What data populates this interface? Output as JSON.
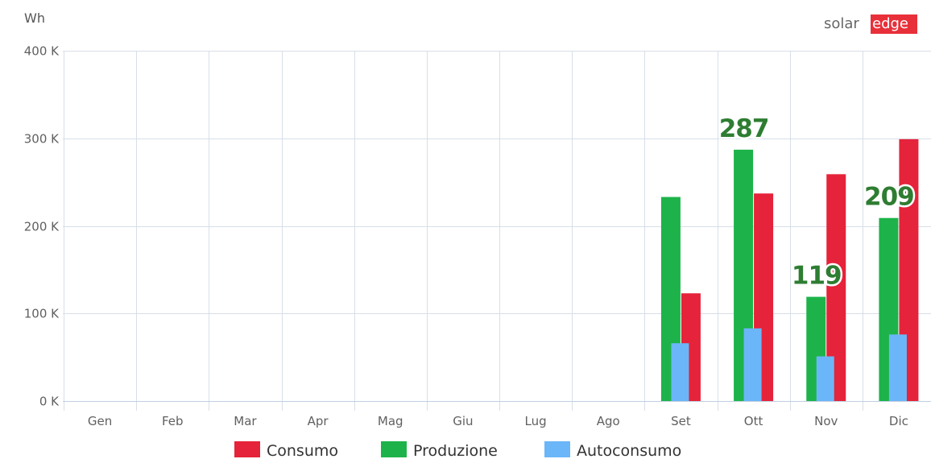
{
  "logo": {
    "part1": "solar",
    "part2": "edge",
    "edge_color": "#e8303a"
  },
  "chart_data": {
    "type": "bar",
    "unit_label": "Wh",
    "categories": [
      "Gen",
      "Feb",
      "Mar",
      "Apr",
      "Mag",
      "Giu",
      "Lug",
      "Ago",
      "Set",
      "Ott",
      "Nov",
      "Dic"
    ],
    "ylim": [
      0,
      400000
    ],
    "y_ticks": [
      {
        "value": 0,
        "label": "0 K"
      },
      {
        "value": 100000,
        "label": "100 K"
      },
      {
        "value": 200000,
        "label": "200 K"
      },
      {
        "value": 300000,
        "label": "300 K"
      },
      {
        "value": 400000,
        "label": "400 K"
      }
    ],
    "grid": true,
    "legend_position": "bottom",
    "series": [
      {
        "name": "Produzione",
        "color": "#1db34a",
        "values": [
          0,
          0,
          0,
          0,
          0,
          0,
          0,
          0,
          233000,
          287000,
          119000,
          209000
        ]
      },
      {
        "name": "Consumo",
        "color": "#e5233a",
        "values": [
          0,
          0,
          0,
          0,
          0,
          0,
          0,
          0,
          123000,
          237000,
          259000,
          299000
        ]
      },
      {
        "name": "Autoconsumo",
        "color": "#6bb6f8",
        "values": [
          0,
          0,
          0,
          0,
          0,
          0,
          0,
          0,
          66000,
          83000,
          51000,
          76000
        ]
      }
    ],
    "legend_order": [
      "Consumo",
      "Produzione",
      "Autoconsumo"
    ],
    "data_labels": [
      {
        "category": "Ott",
        "series": "Produzione",
        "text": "287"
      },
      {
        "category": "Nov",
        "series": "Produzione",
        "text": "119"
      },
      {
        "category": "Dic",
        "series": "Produzione",
        "text": "209"
      }
    ]
  }
}
